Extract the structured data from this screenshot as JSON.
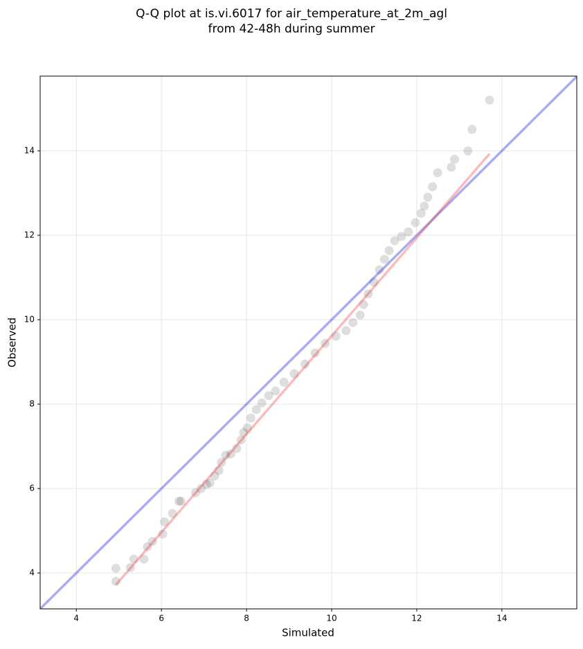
{
  "chart_data": {
    "type": "scatter",
    "title": "Q-Q plot at is.vi.6017 for air_temperature_at_2m_agl",
    "subtitle": "from 42-48h during summer",
    "xlabel": "Simulated",
    "ylabel": "Observed",
    "xlim": [
      3.15,
      15.76
    ],
    "ylim": [
      3.15,
      15.77
    ],
    "xticks": [
      4,
      6,
      8,
      10,
      12,
      14
    ],
    "yticks": [
      4,
      6,
      8,
      10,
      12,
      14
    ],
    "grid": true,
    "series": [
      {
        "color": "#000000",
        "x": [
          4.93,
          4.93,
          5.27,
          5.35,
          5.59,
          5.67,
          5.79,
          6.03,
          6.07,
          6.26,
          6.41,
          6.46,
          6.8,
          6.93,
          7.06,
          7.14,
          7.25,
          7.35,
          7.41,
          7.51,
          7.63,
          7.77,
          7.87,
          7.93,
          8.02,
          8.1,
          8.23,
          8.36,
          8.52,
          8.68,
          8.88,
          9.12,
          9.37,
          9.61,
          9.85,
          10.1,
          10.34,
          10.5,
          10.67,
          10.75,
          10.86,
          10.99,
          11.12,
          11.24,
          11.35,
          11.48,
          11.64,
          11.8,
          11.97,
          12.1,
          12.18,
          12.26,
          12.37,
          12.49,
          12.81,
          12.89,
          13.2,
          13.3,
          13.71
        ],
        "y": [
          3.8,
          4.11,
          4.13,
          4.33,
          4.33,
          4.62,
          4.75,
          4.92,
          5.21,
          5.41,
          5.7,
          5.7,
          5.9,
          6.0,
          6.1,
          6.13,
          6.3,
          6.43,
          6.62,
          6.79,
          6.82,
          6.95,
          7.15,
          7.33,
          7.44,
          7.67,
          7.87,
          8.03,
          8.2,
          8.31,
          8.52,
          8.72,
          8.95,
          9.21,
          9.44,
          9.61,
          9.74,
          9.93,
          10.11,
          10.36,
          10.61,
          10.89,
          11.18,
          11.43,
          11.64,
          11.87,
          11.97,
          12.08,
          12.3,
          12.52,
          12.69,
          12.9,
          13.15,
          13.48,
          13.61,
          13.8,
          14.0,
          14.51,
          15.2
        ]
      }
    ],
    "lines": [
      {
        "color": "#0000dd",
        "x": [
          3.15,
          15.76
        ],
        "y": [
          3.15,
          15.76
        ]
      },
      {
        "color": "#ee3333",
        "x": [
          4.93,
          13.71
        ],
        "y": [
          3.72,
          13.93
        ]
      }
    ]
  }
}
